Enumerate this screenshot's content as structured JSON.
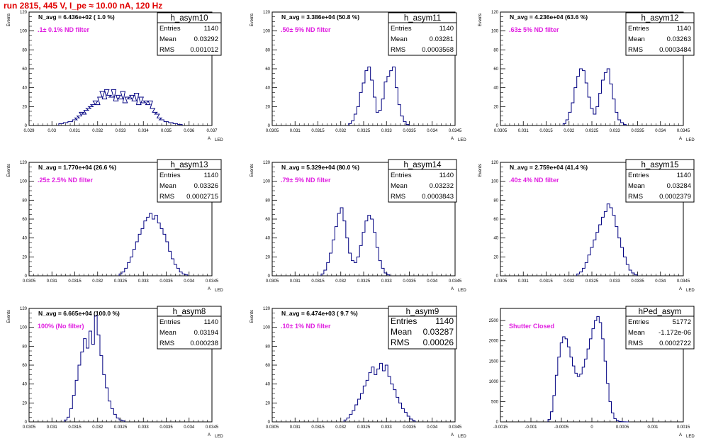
{
  "title": "run 2815,   445 V, I_pe ≈ 10.00 nA, 120 Hz",
  "colors": {
    "title": "#e00000",
    "histogram": "#000080",
    "annotation": "#e020e0",
    "frame": "#000000"
  },
  "chart_data": [
    {
      "type": "histogram",
      "name": "h_asym10",
      "stats": {
        "entries": "1140",
        "mean": "0.03292",
        "rms": "0.001012"
      },
      "n_avg": "N_avg = 6.436e+02 ( 1.0 %)",
      "note": ".1± 0.1% ND filter",
      "xlabel": "A",
      "xlabel_sub": "LED",
      "ylabel": "Events",
      "xlim": [
        0.029,
        0.037
      ],
      "ylim": [
        0,
        120
      ],
      "xticks": [
        "0.029",
        "0.03",
        "0.031",
        "0.032",
        "0.033",
        "0.034",
        "0.035",
        "0.036",
        "0.037"
      ],
      "yticks": [
        "0",
        "20",
        "40",
        "60",
        "80",
        "100",
        "120"
      ],
      "bins": {
        "x": [
          0.0304,
          0.0306,
          0.0308,
          0.031,
          0.0311,
          0.0312,
          0.0313,
          0.0314,
          0.0315,
          0.0316,
          0.0317,
          0.0318,
          0.0319,
          0.032,
          0.0321,
          0.0322,
          0.0323,
          0.0324,
          0.0325,
          0.0326,
          0.0327,
          0.0328,
          0.0329,
          0.033,
          0.0331,
          0.0332,
          0.0333,
          0.0334,
          0.0335,
          0.0336,
          0.0337,
          0.0338,
          0.0339,
          0.034,
          0.0341,
          0.0342,
          0.0343,
          0.0344,
          0.0345,
          0.0346,
          0.0347,
          0.0348,
          0.035,
          0.0352,
          0.0354,
          0.0356
        ],
        "y": [
          2,
          3,
          4,
          6,
          8,
          10,
          14,
          12,
          16,
          18,
          20,
          22,
          26,
          22,
          30,
          36,
          28,
          38,
          32,
          30,
          38,
          26,
          32,
          28,
          36,
          24,
          30,
          28,
          32,
          26,
          34,
          22,
          30,
          24,
          26,
          22,
          26,
          18,
          14,
          12,
          8,
          6,
          4,
          3,
          2,
          1
        ]
      }
    },
    {
      "type": "histogram",
      "name": "h_asym11",
      "stats": {
        "entries": "1140",
        "mean": "0.03281",
        "rms": "0.0003568"
      },
      "n_avg": "N_avg = 3.386e+04 (50.8 %)",
      "note": ".50± 5% ND filter",
      "xlabel": "A",
      "xlabel_sub": "LED",
      "ylabel": "Events",
      "xlim": [
        0.0305,
        0.0345
      ],
      "ylim": [
        0,
        120
      ],
      "xticks": [
        "0.0305",
        "0.031",
        "0.0315",
        "0.032",
        "0.0325",
        "0.033",
        "0.0335",
        "0.034",
        "0.0345"
      ],
      "yticks": [
        "0",
        "20",
        "40",
        "60",
        "80",
        "100",
        "120"
      ],
      "bins": {
        "x": [
          0.0322,
          0.03226,
          0.03232,
          0.03238,
          0.03244,
          0.0325,
          0.03256,
          0.03262,
          0.03268,
          0.03274,
          0.0328,
          0.03286,
          0.03292,
          0.03298,
          0.03304,
          0.0331,
          0.03316,
          0.03322,
          0.03328,
          0.03334,
          0.0334,
          0.03346
        ],
        "y": [
          2,
          5,
          12,
          20,
          35,
          45,
          58,
          62,
          48,
          30,
          14,
          16,
          28,
          46,
          52,
          58,
          62,
          40,
          22,
          10,
          4,
          1
        ]
      }
    },
    {
      "type": "histogram",
      "name": "h_asym12",
      "stats": {
        "entries": "1140",
        "mean": "0.03263",
        "rms": "0.0003484"
      },
      "n_avg": "N_avg = 4.236e+04 (63.6 %)",
      "note": ".63± 5% ND filter",
      "xlabel": "A",
      "xlabel_sub": "LED",
      "ylabel": "Events",
      "xlim": [
        0.0305,
        0.0345
      ],
      "ylim": [
        0,
        120
      ],
      "xticks": [
        "0.0305",
        "0.031",
        "0.0315",
        "0.032",
        "0.0325",
        "0.033",
        "0.0335",
        "0.034",
        "0.0345"
      ],
      "yticks": [
        "0",
        "20",
        "40",
        "60",
        "80",
        "100",
        "120"
      ],
      "bins": {
        "x": [
          0.0319,
          0.03196,
          0.03202,
          0.03208,
          0.03214,
          0.0322,
          0.03226,
          0.03232,
          0.03238,
          0.03244,
          0.0325,
          0.03256,
          0.03262,
          0.03268,
          0.03274,
          0.0328,
          0.03286,
          0.03292,
          0.03298,
          0.03304,
          0.0331,
          0.03316,
          0.03322
        ],
        "y": [
          2,
          6,
          14,
          24,
          40,
          52,
          60,
          58,
          45,
          30,
          18,
          12,
          20,
          34,
          48,
          56,
          60,
          44,
          28,
          14,
          6,
          3,
          1
        ]
      }
    },
    {
      "type": "histogram",
      "name": "h_asym13",
      "stats": {
        "entries": "1140",
        "mean": "0.03326",
        "rms": "0.0002715"
      },
      "n_avg": "N_avg = 1.770e+04 (26.6 %)",
      "note": ".25± 2.5% ND filter",
      "xlabel": "A",
      "xlabel_sub": "LED",
      "ylabel": "Events",
      "xlim": [
        0.0305,
        0.0345
      ],
      "ylim": [
        0,
        120
      ],
      "xticks": [
        "0.0305",
        "0.031",
        "0.0315",
        "0.032",
        "0.0325",
        "0.033",
        "0.0335",
        "0.034",
        "0.0345"
      ],
      "yticks": [
        "0",
        "20",
        "40",
        "60",
        "80",
        "100",
        "120"
      ],
      "bins": {
        "x": [
          0.0325,
          0.03256,
          0.03262,
          0.03268,
          0.03274,
          0.0328,
          0.03286,
          0.03292,
          0.03298,
          0.03304,
          0.0331,
          0.03316,
          0.03322,
          0.03328,
          0.03334,
          0.0334,
          0.03346,
          0.03352,
          0.03358,
          0.03364,
          0.0337,
          0.03376,
          0.03382,
          0.03388,
          0.03394
        ],
        "y": [
          2,
          4,
          8,
          14,
          20,
          28,
          36,
          44,
          50,
          58,
          62,
          66,
          60,
          64,
          56,
          50,
          44,
          36,
          26,
          18,
          12,
          8,
          4,
          2,
          1
        ]
      }
    },
    {
      "type": "histogram",
      "name": "h_asym14",
      "stats": {
        "entries": "1140",
        "mean": "0.03232",
        "rms": "0.0003843"
      },
      "n_avg": "N_avg = 5.329e+04 (80.0 %)",
      "note": ".79± 5% ND filter",
      "xlabel": "A",
      "xlabel_sub": "LED",
      "ylabel": "Events",
      "xlim": [
        0.0305,
        0.0345
      ],
      "ylim": [
        0,
        120
      ],
      "xticks": [
        "0.0305",
        "0.031",
        "0.0315",
        "0.032",
        "0.0325",
        "0.033",
        "0.0335",
        "0.034",
        "0.0345"
      ],
      "yticks": [
        "0",
        "20",
        "40",
        "60",
        "80",
        "100",
        "120"
      ],
      "bins": {
        "x": [
          0.0316,
          0.03166,
          0.03172,
          0.03178,
          0.03184,
          0.0319,
          0.03196,
          0.03202,
          0.03208,
          0.03214,
          0.0322,
          0.03226,
          0.03232,
          0.03238,
          0.03244,
          0.0325,
          0.03256,
          0.03262,
          0.03268,
          0.03274,
          0.0328,
          0.03286,
          0.03292,
          0.03298,
          0.03304
        ],
        "y": [
          2,
          6,
          14,
          24,
          38,
          52,
          66,
          72,
          58,
          40,
          24,
          16,
          14,
          20,
          32,
          46,
          58,
          64,
          60,
          46,
          30,
          16,
          8,
          3,
          1
        ]
      }
    },
    {
      "type": "histogram",
      "name": "h_asym15",
      "stats": {
        "entries": "1140",
        "mean": "0.03284",
        "rms": "0.0002379"
      },
      "n_avg": "N_avg = 2.759e+04 (41.4 %)",
      "note": ".40± 4% ND filter",
      "xlabel": "A",
      "xlabel_sub": "LED",
      "ylabel": "Events",
      "xlim": [
        0.0305,
        0.0345
      ],
      "ylim": [
        0,
        120
      ],
      "xticks": [
        "0.0305",
        "0.031",
        "0.0315",
        "0.032",
        "0.0325",
        "0.033",
        "0.0335",
        "0.034",
        "0.0345"
      ],
      "yticks": [
        "0",
        "20",
        "40",
        "60",
        "80",
        "100",
        "120"
      ],
      "bins": {
        "x": [
          0.0322,
          0.03226,
          0.03232,
          0.03238,
          0.03244,
          0.0325,
          0.03256,
          0.03262,
          0.03268,
          0.03274,
          0.0328,
          0.03286,
          0.03292,
          0.03298,
          0.03304,
          0.0331,
          0.03316,
          0.03322,
          0.03328,
          0.03334,
          0.0334,
          0.03346
        ],
        "y": [
          2,
          4,
          8,
          14,
          22,
          30,
          38,
          46,
          54,
          62,
          68,
          76,
          72,
          64,
          52,
          40,
          30,
          20,
          12,
          6,
          3,
          1
        ]
      }
    },
    {
      "type": "histogram",
      "name": "h_asym8",
      "stats": {
        "entries": "1140",
        "mean": "0.03194",
        "rms": "0.000238"
      },
      "n_avg": "N_avg = 6.665e+04 (100.0 %)",
      "note": "100% (No filter)",
      "xlabel": "A",
      "xlabel_sub": "LED",
      "ylabel": "Events",
      "xlim": [
        0.0305,
        0.0345
      ],
      "ylim": [
        0,
        120
      ],
      "xticks": [
        "0.0305",
        "0.031",
        "0.0315",
        "0.032",
        "0.0325",
        "0.033",
        "0.0335",
        "0.034",
        "0.0345"
      ],
      "yticks": [
        "0",
        "20",
        "40",
        "60",
        "80",
        "100",
        "120"
      ],
      "bins": {
        "x": [
          0.0313,
          0.03136,
          0.03142,
          0.03148,
          0.03154,
          0.0316,
          0.03166,
          0.03172,
          0.03178,
          0.03184,
          0.0319,
          0.03196,
          0.03202,
          0.03208,
          0.03214,
          0.0322,
          0.03226,
          0.03232,
          0.03238,
          0.03244,
          0.0325,
          0.03256
        ],
        "y": [
          2,
          5,
          14,
          28,
          44,
          60,
          74,
          88,
          78,
          96,
          82,
          112,
          92,
          70,
          50,
          36,
          22,
          14,
          8,
          4,
          2,
          1
        ]
      }
    },
    {
      "type": "histogram",
      "name": "h_asym9",
      "stats": {
        "entries": "1140",
        "mean": "0.03287",
        "rms": "0.00026"
      },
      "n_avg": "N_avg = 6.474e+03 ( 9.7 %)",
      "note": ".10± 1% ND filter",
      "xlabel": "A",
      "xlabel_sub": "LED",
      "ylabel": "Events",
      "xlim": [
        0.0305,
        0.0345
      ],
      "ylim": [
        0,
        120
      ],
      "xticks": [
        "0.0305",
        "0.031",
        "0.0315",
        "0.032",
        "0.0325",
        "0.033",
        "0.0335",
        "0.034",
        "0.0345"
      ],
      "yticks": [
        "0",
        "20",
        "40",
        "60",
        "80",
        "100",
        "120"
      ],
      "bins": {
        "x": [
          0.0321,
          0.03216,
          0.03222,
          0.03228,
          0.03234,
          0.0324,
          0.03246,
          0.03252,
          0.03258,
          0.03264,
          0.0327,
          0.03276,
          0.03282,
          0.03288,
          0.03294,
          0.033,
          0.03306,
          0.03312,
          0.03318,
          0.03324,
          0.0333,
          0.03336,
          0.03342,
          0.03348,
          0.03354,
          0.0336
        ],
        "y": [
          2,
          4,
          8,
          12,
          18,
          24,
          30,
          38,
          44,
          52,
          58,
          50,
          56,
          62,
          54,
          60,
          48,
          40,
          34,
          26,
          20,
          14,
          10,
          6,
          3,
          1
        ]
      }
    },
    {
      "type": "histogram",
      "name": "hPed_asym",
      "stats": {
        "entries": "51772",
        "mean": "-1.172e-06",
        "rms": "0.0002722"
      },
      "n_avg": "",
      "note": "Shutter Closed",
      "xlabel": "A",
      "xlabel_sub": "LED",
      "ylabel": "",
      "xlim": [
        -0.0015,
        0.0015
      ],
      "ylim": [
        0,
        2800
      ],
      "xticks": [
        "-0.0015",
        "-0.001",
        "-0.0005",
        "0",
        "0.0005",
        "0.001",
        "0.0015"
      ],
      "yticks": [
        "0",
        "500",
        "1000",
        "1500",
        "2000",
        "2500"
      ],
      "bins": {
        "x": [
          -0.0007,
          -0.00066,
          -0.00062,
          -0.00058,
          -0.00054,
          -0.0005,
          -0.00046,
          -0.00042,
          -0.00038,
          -0.00034,
          -0.0003,
          -0.00026,
          -0.00022,
          -0.00018,
          -0.00014,
          -0.0001,
          -6e-05,
          -2e-05,
          2e-05,
          6e-05,
          0.0001,
          0.00014,
          0.00018,
          0.00022,
          0.00026,
          0.0003,
          0.00034,
          0.00038,
          0.00042,
          0.00046,
          0.0005,
          0.00054,
          0.00058
        ],
        "y": [
          60,
          250,
          650,
          1150,
          1600,
          1950,
          2100,
          2050,
          1850,
          1600,
          1380,
          1200,
          1120,
          1180,
          1350,
          1550,
          1800,
          2050,
          2300,
          2500,
          2600,
          2450,
          2050,
          1500,
          950,
          500,
          220,
          80,
          30,
          10,
          5,
          2,
          1
        ]
      }
    }
  ]
}
